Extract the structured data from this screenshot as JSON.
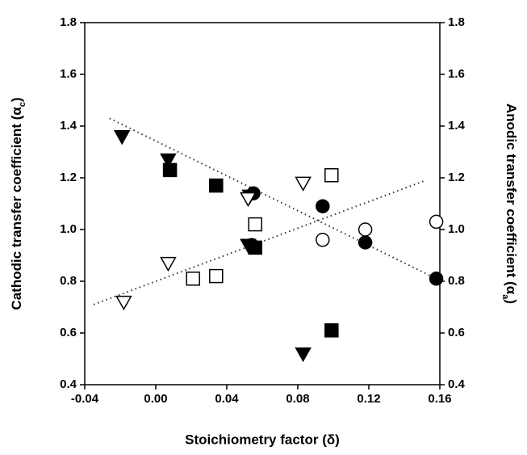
{
  "chart_data": {
    "type": "scatter",
    "x_label": "Stoichiometry factor (δ)",
    "y_label": [
      "Cathodic transfer coefficient (α",
      "c",
      ")"
    ],
    "y2_label": [
      "Anodic transfer coefficient (α",
      "a",
      ")"
    ],
    "xlim": [
      -0.04,
      0.16
    ],
    "xticks": [
      -0.04,
      {
        "value": 0,
        "label": "0.00"
      },
      0.04,
      0.08,
      0.12,
      0.16
    ],
    "ylim": [
      0.4,
      1.8
    ],
    "yticks": [
      0.4,
      0.6,
      0.8,
      {
        "value": 1,
        "label": "1.0"
      },
      1.2,
      1.4,
      1.6,
      1.8
    ],
    "y2lim": [
      0.4,
      1.8
    ],
    "y2ticks": [
      0.4,
      0.6,
      0.8,
      {
        "value": 1,
        "label": "1.0"
      },
      1.2,
      1.4,
      1.6,
      1.8
    ],
    "grid": false,
    "series": [
      {
        "marker": "triangle-down",
        "filled": true,
        "color": "#000000",
        "x": [
          -0.019,
          0.007,
          0.053,
          0.052,
          0.083
        ],
        "values": [
          1.36,
          1.27,
          1.13,
          0.94,
          0.52
        ]
      },
      {
        "marker": "square",
        "filled": true,
        "color": "#000000",
        "x": [
          0.008,
          0.034,
          0.056,
          0.099
        ],
        "values": [
          1.23,
          1.17,
          0.93,
          0.61
        ]
      },
      {
        "marker": "circle",
        "filled": true,
        "color": "#000000",
        "x": [
          0.055,
          0.054,
          0.094,
          0.118,
          0.158
        ],
        "values": [
          1.14,
          0.94,
          1.09,
          0.95,
          0.81
        ]
      },
      {
        "marker": "triangle-down",
        "filled": false,
        "color": "#000000",
        "axis": "y2",
        "x": [
          -0.018,
          0.007,
          0.052,
          0.083
        ],
        "values": [
          0.72,
          0.87,
          1.12,
          1.18
        ]
      },
      {
        "marker": "square",
        "filled": false,
        "color": "#000000",
        "axis": "y2",
        "x": [
          0.021,
          0.034,
          0.056,
          0.099
        ],
        "values": [
          0.81,
          0.82,
          1.02,
          1.21
        ]
      },
      {
        "marker": "circle",
        "filled": false,
        "color": "#000000",
        "axis": "y2",
        "x": [
          0.094,
          0.118,
          0.158
        ],
        "values": [
          0.96,
          1.0,
          1.03
        ]
      }
    ],
    "fit_lines": [
      {
        "x": [
          -0.026,
          0.158
        ],
        "values": [
          1.43,
          0.81
        ],
        "color": "#333333"
      },
      {
        "x": [
          -0.035,
          0.152
        ],
        "values": [
          0.71,
          1.19
        ],
        "color": "#333333"
      }
    ]
  }
}
